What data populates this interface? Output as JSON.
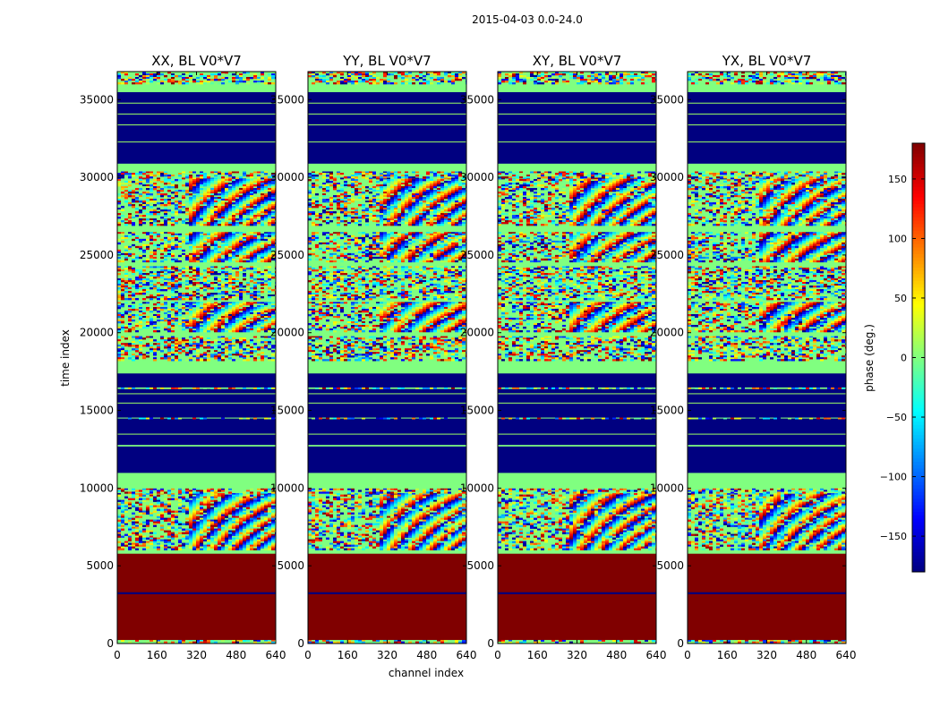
{
  "figure": {
    "suptitle": "2015-04-03 0.0-24.0"
  },
  "chart_data": {
    "type": "heatmap",
    "title": "2015-04-03 0.0-24.0",
    "xlabel": "channel index",
    "ylabel": "time index",
    "xlim": [
      0,
      640
    ],
    "ylim": [
      0,
      36800
    ],
    "x_ticks": [
      0,
      160,
      320,
      480,
      640
    ],
    "y_ticks": [
      0,
      5000,
      10000,
      15000,
      20000,
      25000,
      30000,
      35000
    ],
    "panels": [
      {
        "title": "XX, BL V0*V7",
        "polarization": "XX"
      },
      {
        "title": "YY, BL V0*V7",
        "polarization": "YY"
      },
      {
        "title": "XY, BL V0*V7",
        "polarization": "XY"
      },
      {
        "title": "YX, BL V0*V7",
        "polarization": "YX"
      }
    ],
    "colorbar": {
      "label": "phase (deg.)",
      "range": [
        -180,
        180
      ],
      "ticks": [
        -150,
        -100,
        -50,
        0,
        50,
        100,
        150
      ],
      "tick_labels": [
        "−150",
        "−100",
        "−50",
        "0",
        "50",
        "100",
        "150"
      ],
      "colormap": "jet"
    },
    "bands": [
      {
        "t0": 0,
        "t1": 250,
        "kind": "noise"
      },
      {
        "t0": 250,
        "t1": 3200,
        "kind": "solid",
        "value": 180
      },
      {
        "t0": 3200,
        "t1": 3320,
        "kind": "solid",
        "value": -180
      },
      {
        "t0": 3320,
        "t1": 5800,
        "kind": "solid",
        "value": 180
      },
      {
        "t0": 5800,
        "t1": 6050,
        "kind": "solid",
        "value": 0
      },
      {
        "t0": 6050,
        "t1": 9700,
        "kind": "fringe"
      },
      {
        "t0": 9700,
        "t1": 10000,
        "kind": "noise"
      },
      {
        "t0": 10000,
        "t1": 11000,
        "kind": "solid",
        "value": 0
      },
      {
        "t0": 11000,
        "t1": 12700,
        "kind": "solid",
        "value": -180
      },
      {
        "t0": 12700,
        "t1": 12800,
        "kind": "solid",
        "value": 0
      },
      {
        "t0": 12800,
        "t1": 14500,
        "kind": "solid",
        "value": -180
      },
      {
        "t0": 14500,
        "t1": 14560,
        "kind": "noise"
      },
      {
        "t0": 14560,
        "t1": 16400,
        "kind": "solid",
        "value": -180
      },
      {
        "t0": 16400,
        "t1": 16500,
        "kind": "noise"
      },
      {
        "t0": 16500,
        "t1": 17400,
        "kind": "solid",
        "value": -180
      },
      {
        "t0": 17400,
        "t1": 18300,
        "kind": "solid",
        "value": 0
      },
      {
        "t0": 18300,
        "t1": 19800,
        "kind": "noise"
      },
      {
        "t0": 19800,
        "t1": 20100,
        "kind": "solid",
        "value": 0
      },
      {
        "t0": 20100,
        "t1": 22000,
        "kind": "fringe"
      },
      {
        "t0": 22000,
        "t1": 22200,
        "kind": "solid",
        "value": 0
      },
      {
        "t0": 22200,
        "t1": 24300,
        "kind": "noise"
      },
      {
        "t0": 24300,
        "t1": 24600,
        "kind": "solid",
        "value": 0
      },
      {
        "t0": 24600,
        "t1": 26500,
        "kind": "fringe"
      },
      {
        "t0": 26500,
        "t1": 27000,
        "kind": "solid",
        "value": 0
      },
      {
        "t0": 27000,
        "t1": 30000,
        "kind": "fringe"
      },
      {
        "t0": 30000,
        "t1": 30400,
        "kind": "noise"
      },
      {
        "t0": 30400,
        "t1": 30900,
        "kind": "solid",
        "value": 0
      },
      {
        "t0": 30900,
        "t1": 35500,
        "kind": "solid",
        "value": -180
      },
      {
        "t0": 35500,
        "t1": 36000,
        "kind": "solid",
        "value": 0
      },
      {
        "t0": 36000,
        "t1": 36800,
        "kind": "noise"
      }
    ]
  }
}
